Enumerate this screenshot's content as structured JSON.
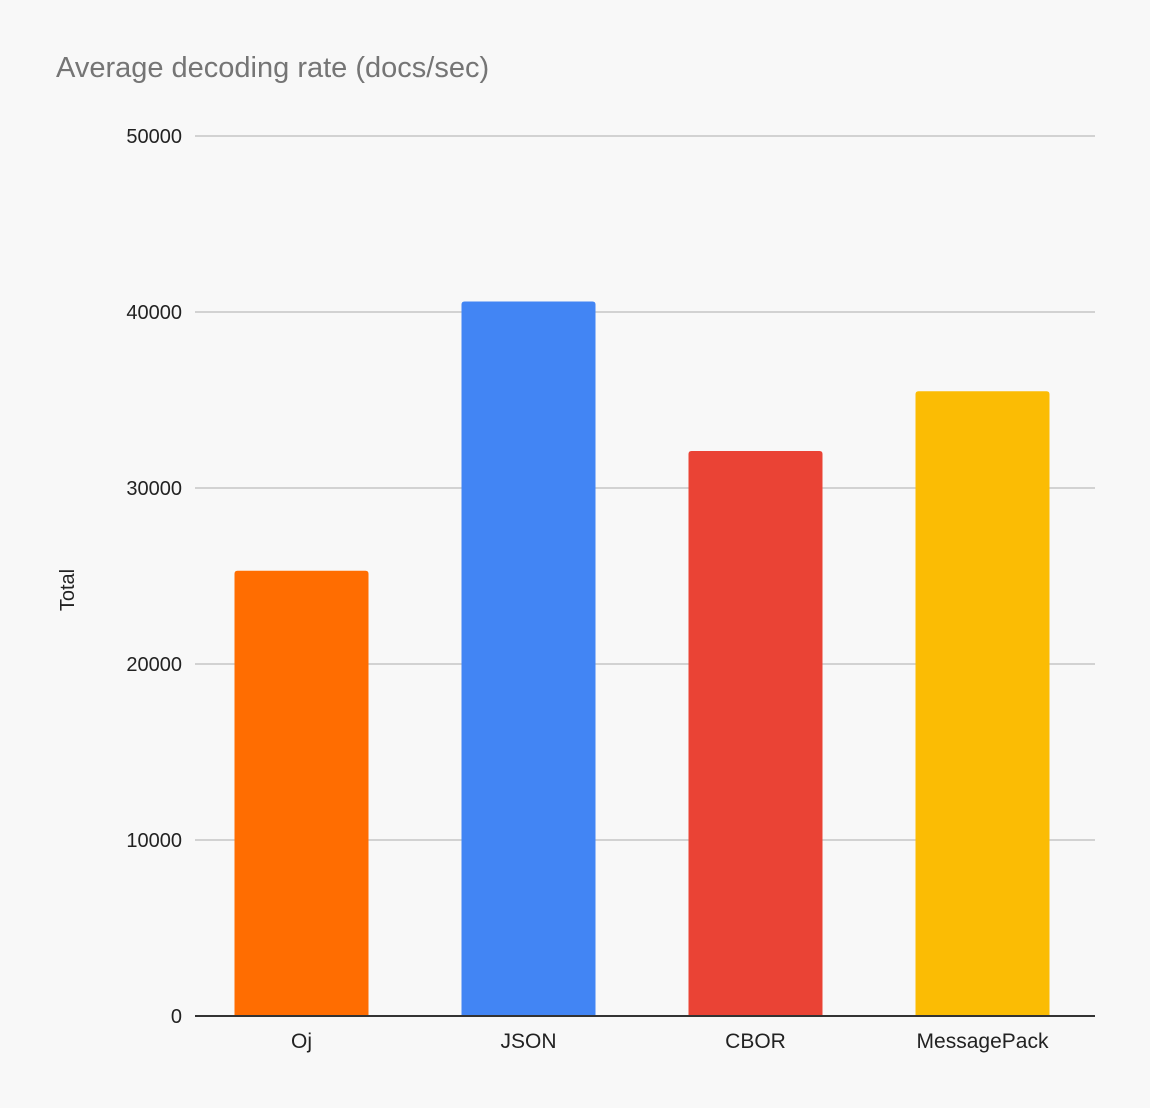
{
  "chart_data": {
    "type": "bar",
    "title": "Average decoding rate (docs/sec)",
    "xlabel": "",
    "ylabel": "Total",
    "categories": [
      "Oj",
      "JSON",
      "CBOR",
      "MessagePack"
    ],
    "values": [
      25300,
      40600,
      32100,
      35500
    ],
    "colors": [
      "#ff6d01",
      "#4285f4",
      "#ea4335",
      "#fbbc04"
    ],
    "ylim": [
      0,
      50000
    ],
    "yticks": [
      0,
      10000,
      20000,
      30000,
      40000,
      50000
    ],
    "grid": true,
    "legend": "none"
  }
}
